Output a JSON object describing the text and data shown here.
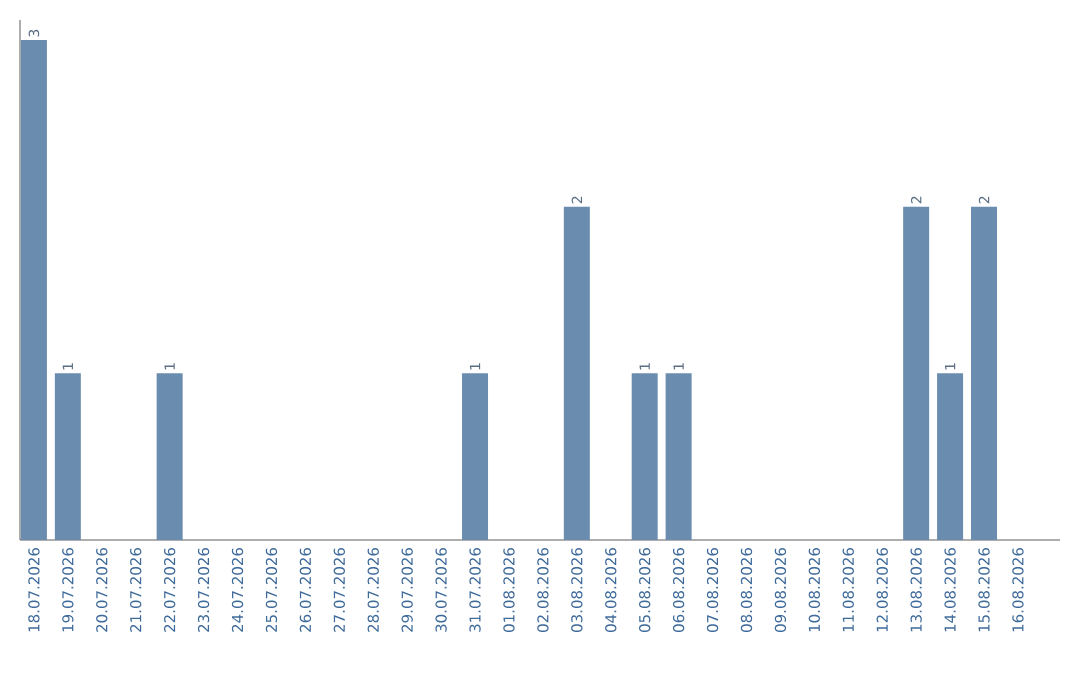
{
  "chart_data": {
    "type": "bar",
    "categories": [
      "18.07.2026",
      "19.07.2026",
      "20.07.2026",
      "21.07.2026",
      "22.07.2026",
      "23.07.2026",
      "24.07.2026",
      "25.07.2026",
      "26.07.2026",
      "27.07.2026",
      "28.07.2026",
      "29.07.2026",
      "30.07.2026",
      "31.07.2026",
      "01.08.2026",
      "02.08.2026",
      "03.08.2026",
      "04.08.2026",
      "05.08.2026",
      "06.08.2026",
      "07.08.2026",
      "08.08.2026",
      "09.08.2026",
      "10.08.2026",
      "11.08.2026",
      "12.08.2026",
      "13.08.2026",
      "14.08.2026",
      "15.08.2026",
      "16.08.2026"
    ],
    "values": [
      3,
      1,
      0,
      0,
      1,
      0,
      0,
      0,
      0,
      0,
      0,
      0,
      0,
      1,
      0,
      0,
      2,
      0,
      1,
      1,
      0,
      0,
      0,
      0,
      0,
      0,
      2,
      1,
      2,
      0
    ],
    "value_labels": [
      "3",
      "1",
      null,
      null,
      "1",
      null,
      null,
      null,
      null,
      null,
      null,
      null,
      null,
      "1",
      null,
      null,
      "2",
      null,
      "1",
      "1",
      null,
      null,
      null,
      null,
      null,
      null,
      "2",
      "1",
      "2",
      null
    ],
    "color": "#6a8caf"
  }
}
